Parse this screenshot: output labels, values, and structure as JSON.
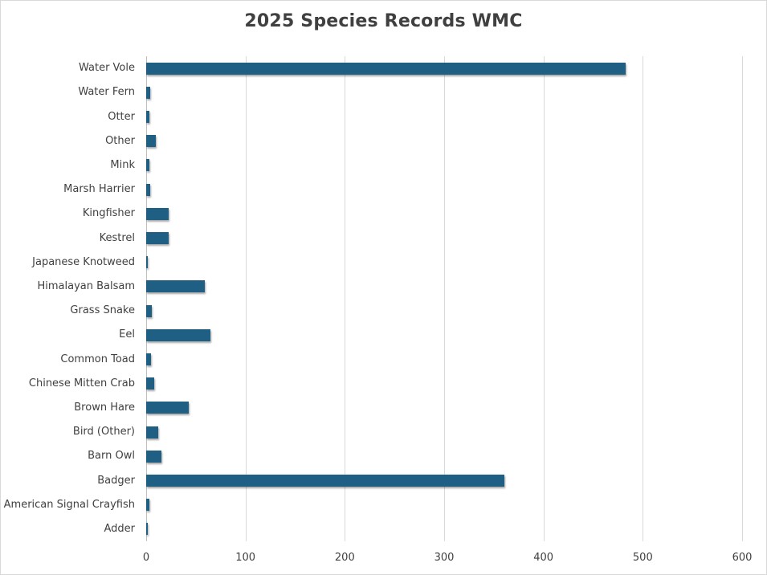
{
  "chart_data": {
    "type": "bar",
    "orientation": "horizontal",
    "title": "2025 Species Records WMC",
    "xlabel": "",
    "ylabel": "",
    "xlim": [
      0,
      600
    ],
    "xticks": [
      0,
      100,
      200,
      300,
      400,
      500,
      600
    ],
    "grid": true,
    "legend": "none",
    "bar_color": "#1f5f84",
    "categories": [
      "Water Vole",
      "Water Fern",
      "Otter",
      "Other",
      "Mink",
      "Marsh Harrier",
      "Kingfisher",
      "Kestrel",
      "Japanese Knotweed",
      "Himalayan Balsam",
      "Grass Snake",
      "Eel",
      "Common Toad",
      "Chinese Mitten Crab",
      "Brown Hare",
      "Bird (Other)",
      "Barn Owl",
      "Badger",
      "American Signal Crayfish",
      "Adder"
    ],
    "values": [
      483,
      4,
      3,
      10,
      3,
      4,
      23,
      23,
      1,
      59,
      6,
      65,
      5,
      8,
      43,
      12,
      15,
      361,
      3,
      2
    ]
  },
  "labels": {
    "title": "2025 Species Records WMC",
    "xticks": [
      "0",
      "100",
      "200",
      "300",
      "400",
      "500",
      "600"
    ],
    "categories": [
      "Water Vole",
      "Water Fern",
      "Otter",
      "Other",
      "Mink",
      "Marsh Harrier",
      "Kingfisher",
      "Kestrel",
      "Japanese Knotweed",
      "Himalayan Balsam",
      "Grass Snake",
      "Eel",
      "Common Toad",
      "Chinese Mitten Crab",
      "Brown Hare",
      "Bird (Other)",
      "Barn Owl",
      "Badger",
      "American Signal Crayfish",
      "Adder"
    ]
  }
}
